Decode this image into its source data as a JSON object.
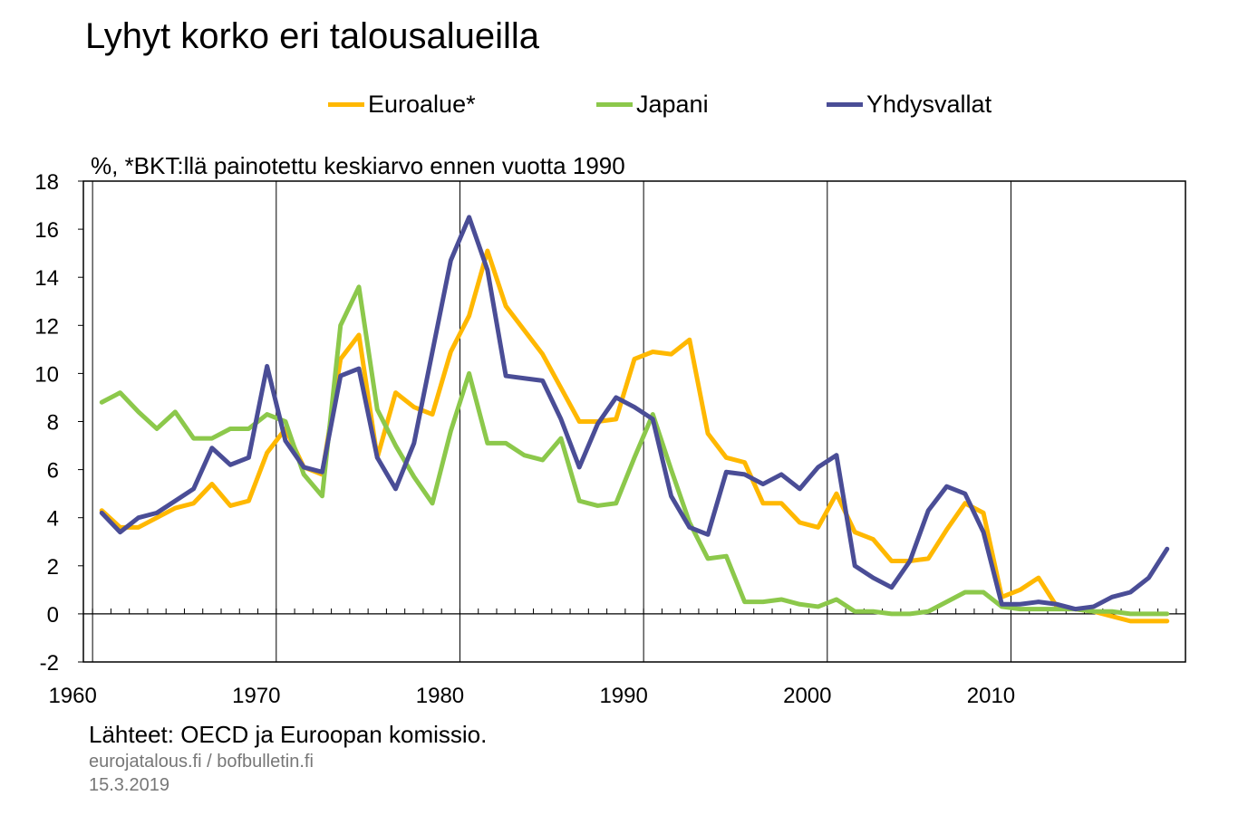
{
  "title": "Lyhyt korko eri talousalueilla",
  "unit_note": "%, *BKT:llä painotettu keskiarvo ennen vuotta 1990",
  "source": "Lähteet: OECD ja Euroopan komissio.",
  "footer": {
    "site": "eurojatalous.fi / bofbulletin.fi",
    "date": "15.3.2019"
  },
  "colors": {
    "Euroalue*": "#FFB800",
    "Japani": "#8CC84B",
    "Yhdysvallat": "#4A4D96"
  },
  "chart_data": {
    "type": "line",
    "xlim": [
      1959,
      2019
    ],
    "ylim": [
      -2,
      18
    ],
    "yticks": [
      -2,
      0,
      2,
      4,
      6,
      8,
      10,
      12,
      14,
      16,
      18
    ],
    "xtick_labels": [
      "1960",
      "1970",
      "1980",
      "1990",
      "2000",
      "2010"
    ],
    "grid": "vertical at decades",
    "legend_position": "top",
    "x": [
      1960,
      1961,
      1962,
      1963,
      1964,
      1965,
      1966,
      1967,
      1968,
      1969,
      1970,
      1971,
      1972,
      1973,
      1974,
      1975,
      1976,
      1977,
      1978,
      1979,
      1980,
      1981,
      1982,
      1983,
      1984,
      1985,
      1986,
      1987,
      1988,
      1989,
      1990,
      1991,
      1992,
      1993,
      1994,
      1995,
      1996,
      1997,
      1998,
      1999,
      2000,
      2001,
      2002,
      2003,
      2004,
      2005,
      2006,
      2007,
      2008,
      2009,
      2010,
      2011,
      2012,
      2013,
      2014,
      2015,
      2016,
      2017,
      2018
    ],
    "series": [
      {
        "name": "Euroalue*",
        "values": [
          4.3,
          3.6,
          3.6,
          4.0,
          4.4,
          4.6,
          5.4,
          4.5,
          4.7,
          6.7,
          7.7,
          6.1,
          5.8,
          10.6,
          11.6,
          6.5,
          9.2,
          8.6,
          8.3,
          10.9,
          12.4,
          15.1,
          12.8,
          11.8,
          10.8,
          9.4,
          8.0,
          8.0,
          8.1,
          10.6,
          10.9,
          10.8,
          11.4,
          7.5,
          6.5,
          6.3,
          4.6,
          4.6,
          3.8,
          3.6,
          5.0,
          3.4,
          3.1,
          2.2,
          2.2,
          2.3,
          3.5,
          4.6,
          4.2,
          0.7,
          1.0,
          1.5,
          0.3,
          0.2,
          0.1,
          -0.1,
          -0.3,
          -0.3,
          -0.3
        ]
      },
      {
        "name": "Japani",
        "values": [
          8.8,
          9.2,
          8.4,
          7.7,
          8.4,
          7.3,
          7.3,
          7.7,
          7.7,
          8.3,
          8.0,
          5.8,
          4.9,
          12.0,
          13.6,
          8.5,
          7.0,
          5.7,
          4.6,
          7.6,
          10.0,
          7.1,
          7.1,
          6.6,
          6.4,
          7.3,
          4.7,
          4.5,
          4.6,
          6.5,
          8.3,
          6.0,
          3.8,
          2.3,
          2.4,
          0.5,
          0.5,
          0.6,
          0.4,
          0.3,
          0.6,
          0.1,
          0.1,
          0.0,
          0.0,
          0.1,
          0.5,
          0.9,
          0.9,
          0.3,
          0.2,
          0.2,
          0.2,
          0.2,
          0.1,
          0.1,
          0.0,
          0.0,
          0.0
        ]
      },
      {
        "name": "Yhdysvallat",
        "values": [
          4.2,
          3.4,
          4.0,
          4.2,
          4.7,
          5.2,
          6.9,
          6.2,
          6.5,
          10.3,
          7.2,
          6.1,
          5.9,
          9.9,
          10.2,
          6.5,
          5.2,
          7.1,
          10.9,
          14.7,
          16.5,
          14.3,
          9.9,
          9.8,
          9.7,
          8.1,
          6.1,
          7.9,
          9.0,
          8.6,
          8.1,
          4.9,
          3.6,
          3.3,
          5.9,
          5.8,
          5.4,
          5.8,
          5.2,
          6.1,
          6.6,
          2.0,
          1.5,
          1.1,
          2.2,
          4.3,
          5.3,
          5.0,
          3.4,
          0.4,
          0.4,
          0.5,
          0.4,
          0.2,
          0.3,
          0.7,
          0.9,
          1.5,
          2.7
        ]
      }
    ]
  }
}
